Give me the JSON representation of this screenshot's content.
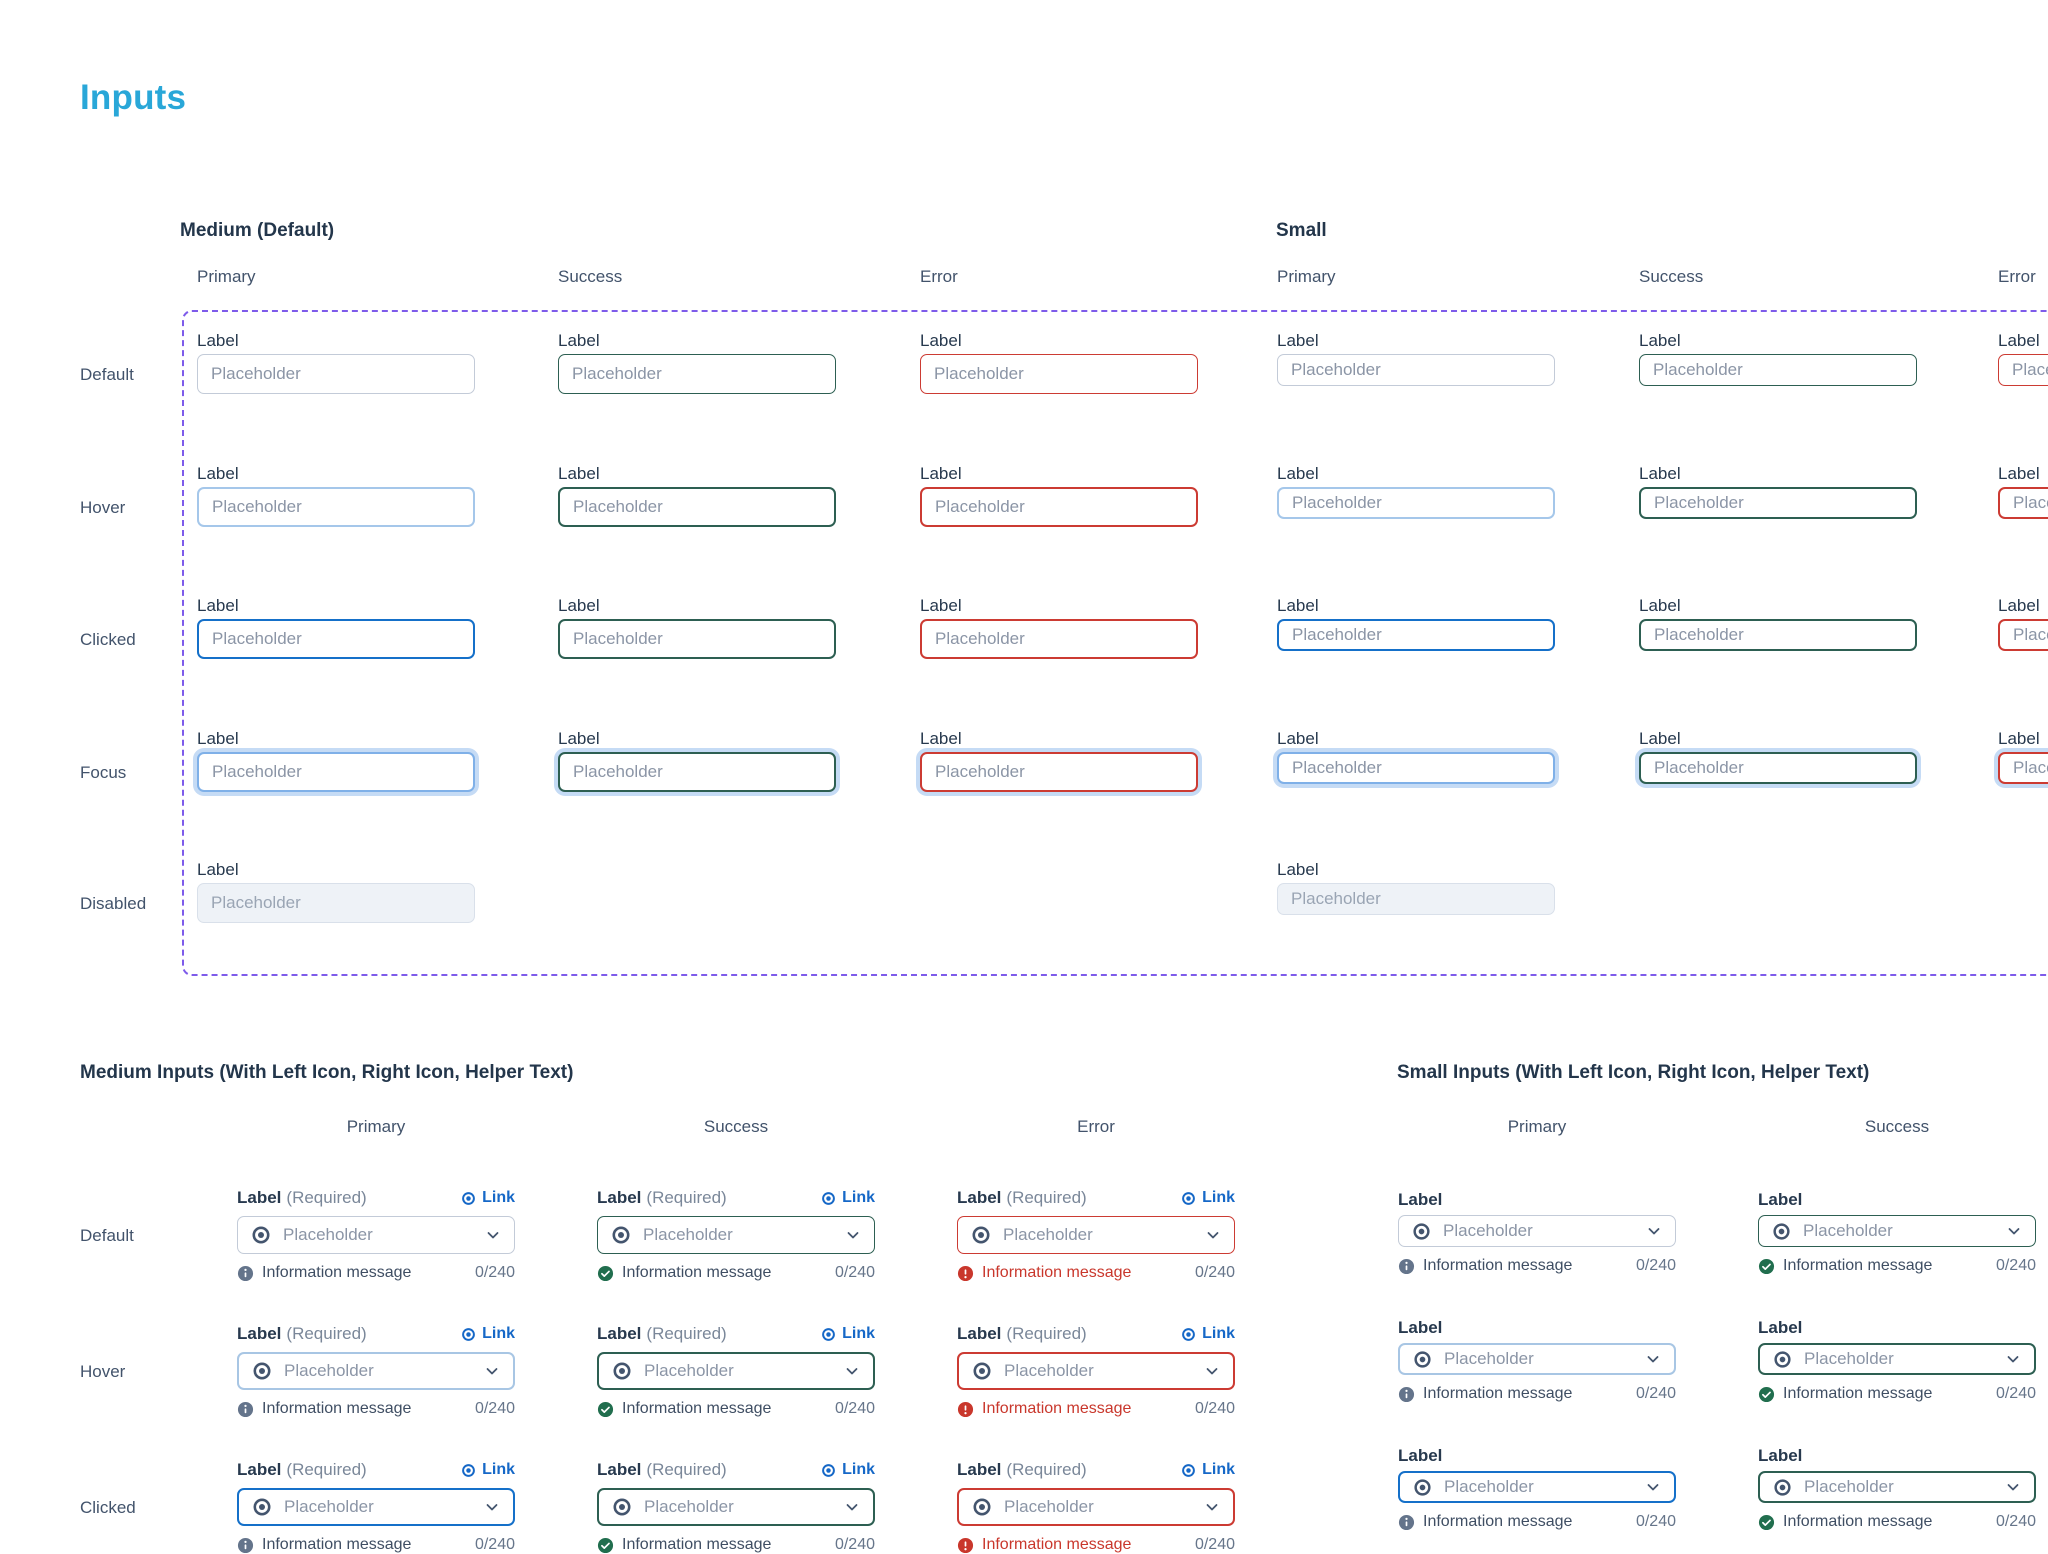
{
  "title": "Inputs",
  "labels": {
    "field_label": "Label",
    "required": "(Required)",
    "link": "Link",
    "placeholder": "Placeholder",
    "info_message": "Information message",
    "counter": "0/240"
  },
  "top": {
    "groups": [
      {
        "title": "Medium (Default)",
        "size": "medium",
        "columns": [
          "Primary",
          "Success",
          "Error"
        ]
      },
      {
        "title": "Small",
        "size": "small",
        "columns": [
          "Primary",
          "Success",
          "Error"
        ]
      }
    ],
    "rows": [
      "Default",
      "Hover",
      "Clicked",
      "Focus",
      "Disabled"
    ]
  },
  "bottom": {
    "groups": [
      {
        "title": "Medium Inputs (With Left Icon, Right Icon, Helper Text)",
        "size": "medium",
        "columns": [
          "Primary",
          "Success",
          "Error"
        ]
      },
      {
        "title": "Small Inputs (With Left Icon, Right Icon, Helper Text)",
        "size": "small",
        "columns": [
          "Primary",
          "Success"
        ]
      }
    ],
    "rows": [
      "Default",
      "Hover",
      "Clicked"
    ]
  },
  "icons": [
    "eye-icon",
    "chevron-down-icon",
    "info-icon",
    "check-circle-icon",
    "alert-circle-icon"
  ],
  "colors": {
    "page_title": "#29A7D8",
    "dashed_outline": "#7E5BEA",
    "primary_default_border": "#C3CBD8",
    "primary_hover_border": "#A5C7EA",
    "primary_clicked_border": "#1570C9",
    "focus_ring": "#7FB0E8",
    "success_border": "#2D5F52",
    "error_border": "#CC3B33",
    "error_text": "#C9372C",
    "link_blue": "#1668C7",
    "label_text": "#27394E",
    "secondary_text": "#42536B",
    "placeholder_text": "#8B95A6",
    "disabled_bg": "#EEF2F7",
    "helper_icon_gray": "#64748B",
    "success_icon_green": "#216E4E"
  }
}
